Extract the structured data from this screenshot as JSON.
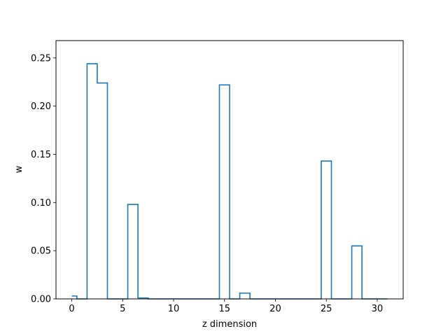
{
  "chart_data": {
    "type": "step",
    "step_style": "mid",
    "title": "",
    "xlabel": "z dimension",
    "ylabel": "w",
    "xlim": [
      -1.55,
      32.55
    ],
    "ylim": [
      0,
      0.268
    ],
    "xticks": [
      0,
      5,
      10,
      15,
      20,
      25,
      30
    ],
    "yticks": [
      0.0,
      0.05,
      0.1,
      0.15,
      0.2,
      0.25
    ],
    "xtick_labels": [
      "0",
      "5",
      "10",
      "15",
      "20",
      "25",
      "30"
    ],
    "ytick_labels": [
      "0.00",
      "0.05",
      "0.10",
      "0.15",
      "0.20",
      "0.25"
    ],
    "grid": false,
    "legend": false,
    "series": [
      {
        "color": "#1f77b4",
        "x": [
          0,
          1,
          2,
          3,
          4,
          5,
          6,
          7,
          8,
          9,
          10,
          11,
          12,
          13,
          14,
          15,
          16,
          17,
          18,
          19,
          20,
          21,
          22,
          23,
          24,
          25,
          26,
          27,
          28,
          29,
          30,
          31
        ],
        "y": [
          0.003,
          0.0,
          0.244,
          0.224,
          0.0,
          0.0,
          0.098,
          0.001,
          0.0,
          0.0,
          0.0,
          0.0,
          0.0,
          0.0,
          0.0,
          0.222,
          0.0,
          0.006,
          0.0,
          0.0,
          0.0,
          0.0,
          0.0,
          0.0,
          0.0,
          0.143,
          0.0,
          0.0,
          0.055,
          0.0,
          0.0,
          0.0
        ]
      }
    ]
  }
}
